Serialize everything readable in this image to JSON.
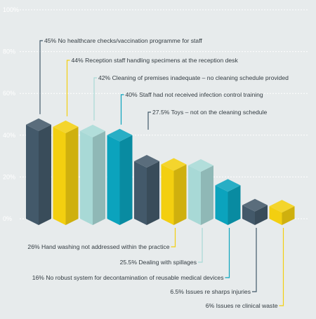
{
  "chart_data": {
    "type": "bar",
    "title": "",
    "xlabel": "",
    "ylabel": "",
    "ylim": [
      0,
      100
    ],
    "yticks": [
      "0%",
      "20%",
      "40%",
      "60%",
      "80%",
      "100%"
    ],
    "grid": true,
    "values": [
      45,
      44,
      42,
      40,
      27.5,
      26,
      25.5,
      16,
      6.5,
      6
    ],
    "labels": [
      "45% No healthcare checks/vaccination programme for staff",
      "44% Reception staff handling specimens at the reception desk",
      "42% Cleaning of premises inadequate – no cleaning schedule provided",
      "40% Staff had not received infection control training",
      "27.5% Toys – not on the cleaning schedule",
      "26% Hand washing not addressed within the practice",
      "25.5% Dealing with spillages",
      "16% No robust system for decontamination of reusable medical devices",
      "6.5% Issues re sharps injuries",
      "6% Issues re clinical waste"
    ],
    "colors": [
      "#43596a",
      "#f3cf10",
      "#a8d9d6",
      "#0ba3bd",
      "#43596a",
      "#f3cf10",
      "#a8d9d6",
      "#0ba3bd",
      "#43596a",
      "#f3cf10"
    ]
  }
}
